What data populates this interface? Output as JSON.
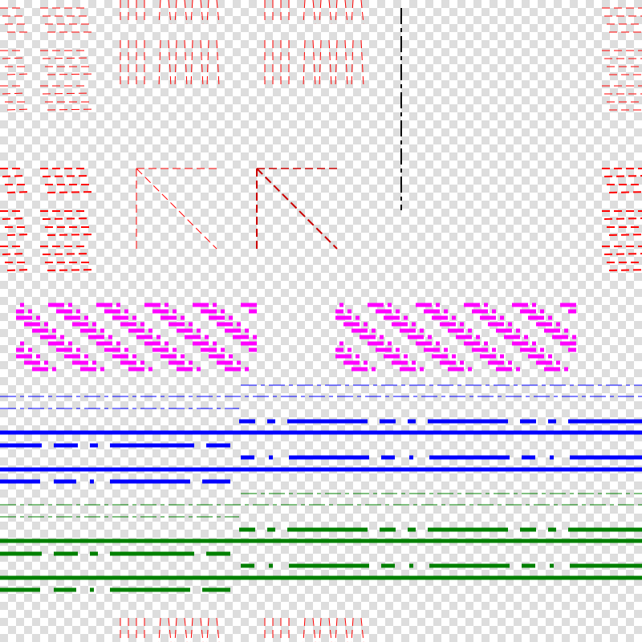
{
  "colors": {
    "red": "#ff0000",
    "dark_red": "#cc0000",
    "black": "#000000",
    "magenta": "#ff00ff",
    "blue": "#0000ff",
    "green": "#008000",
    "checker_light": "#ffffff",
    "checker_dark": "#dddddd"
  },
  "icons": [
    "dashed-line-pattern"
  ]
}
